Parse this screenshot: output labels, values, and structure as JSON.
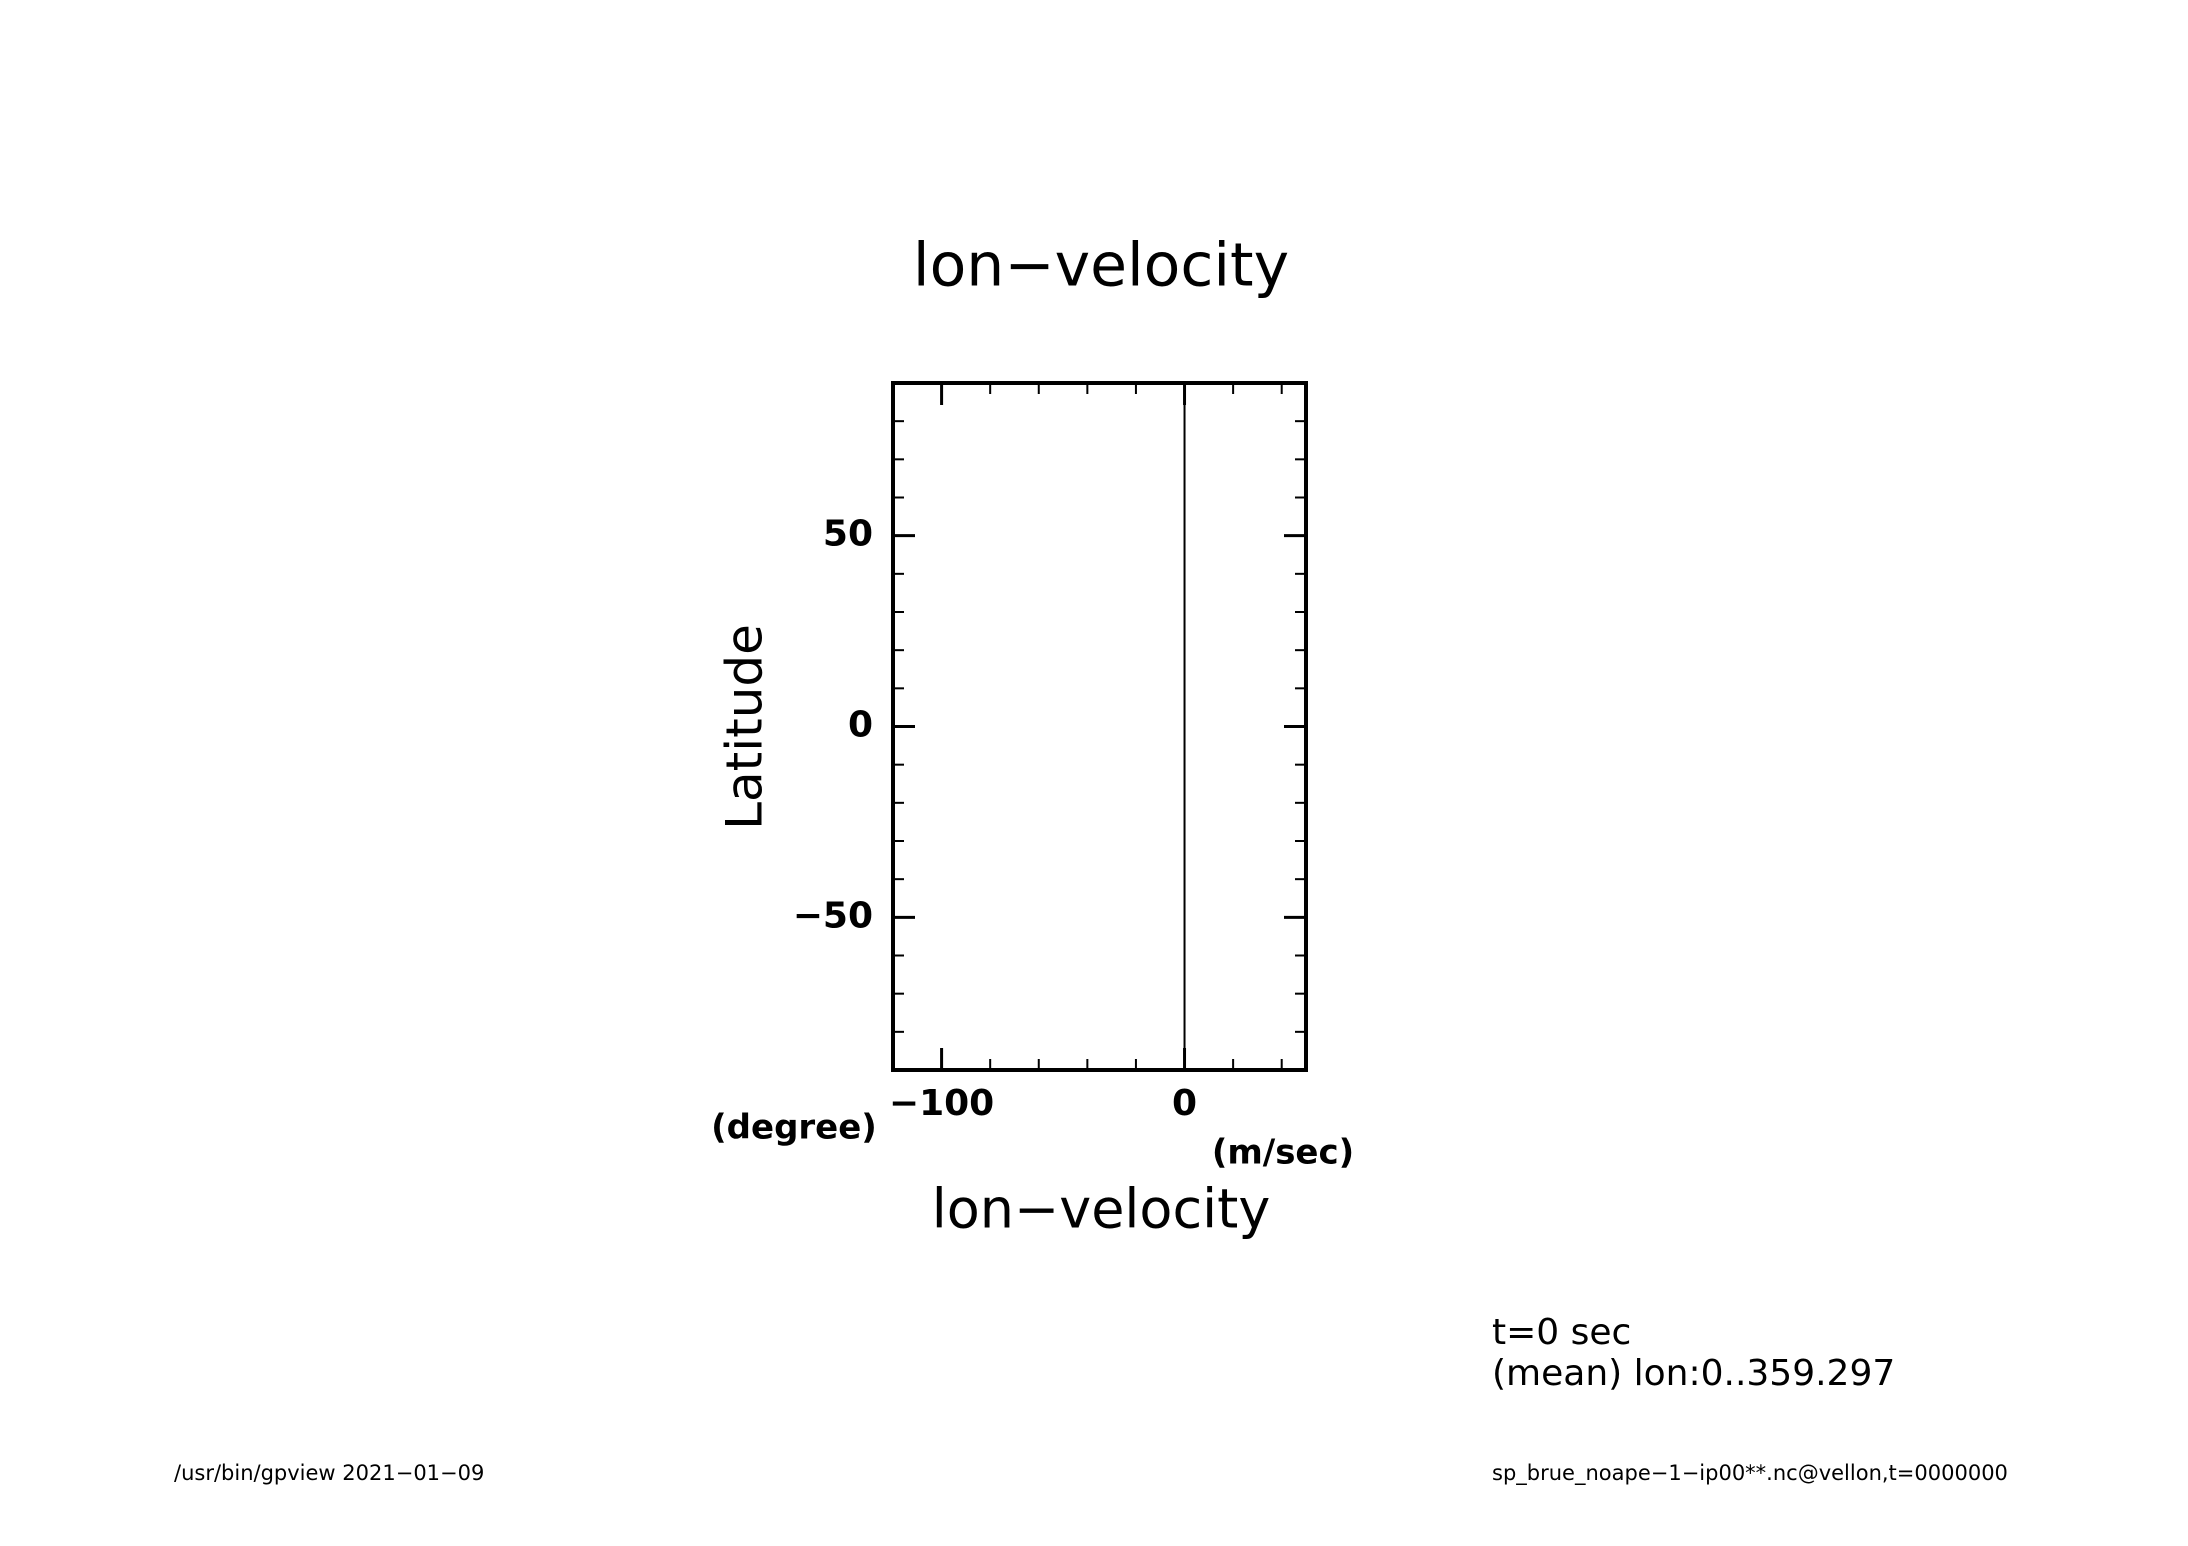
{
  "chart_data": {
    "type": "line",
    "title": "lon−velocity",
    "x_label": "lon−velocity",
    "x_unit": "(m/sec)",
    "y_label": "Latitude",
    "y_unit": "(degree)",
    "series": [
      {
        "color": "#000000",
        "x": [
          0,
          0
        ],
        "y": [
          -88,
          88
        ]
      }
    ],
    "xlim": [
      -120,
      50
    ],
    "ylim": [
      -90,
      90
    ],
    "xticks": [
      {
        "value": -100,
        "label": "−100"
      },
      0
    ],
    "yticks": [
      {
        "value": -50,
        "label": "−50"
      },
      0,
      50
    ],
    "xminorticks": [
      -80,
      -60,
      -40,
      -20,
      20,
      40
    ],
    "yminorticks": [
      -80,
      -70,
      -60,
      -40,
      -30,
      -20,
      -10,
      10,
      20,
      30,
      40,
      60,
      70,
      80
    ],
    "annotations": [
      "t=0 sec",
      "(mean) lon:0..359.297"
    ],
    "footer_left": "/usr/bin/gpview   2021−01−09",
    "footer_right": "sp_brue_noape−1−ip00**.nc@vellon,t=0000000"
  }
}
